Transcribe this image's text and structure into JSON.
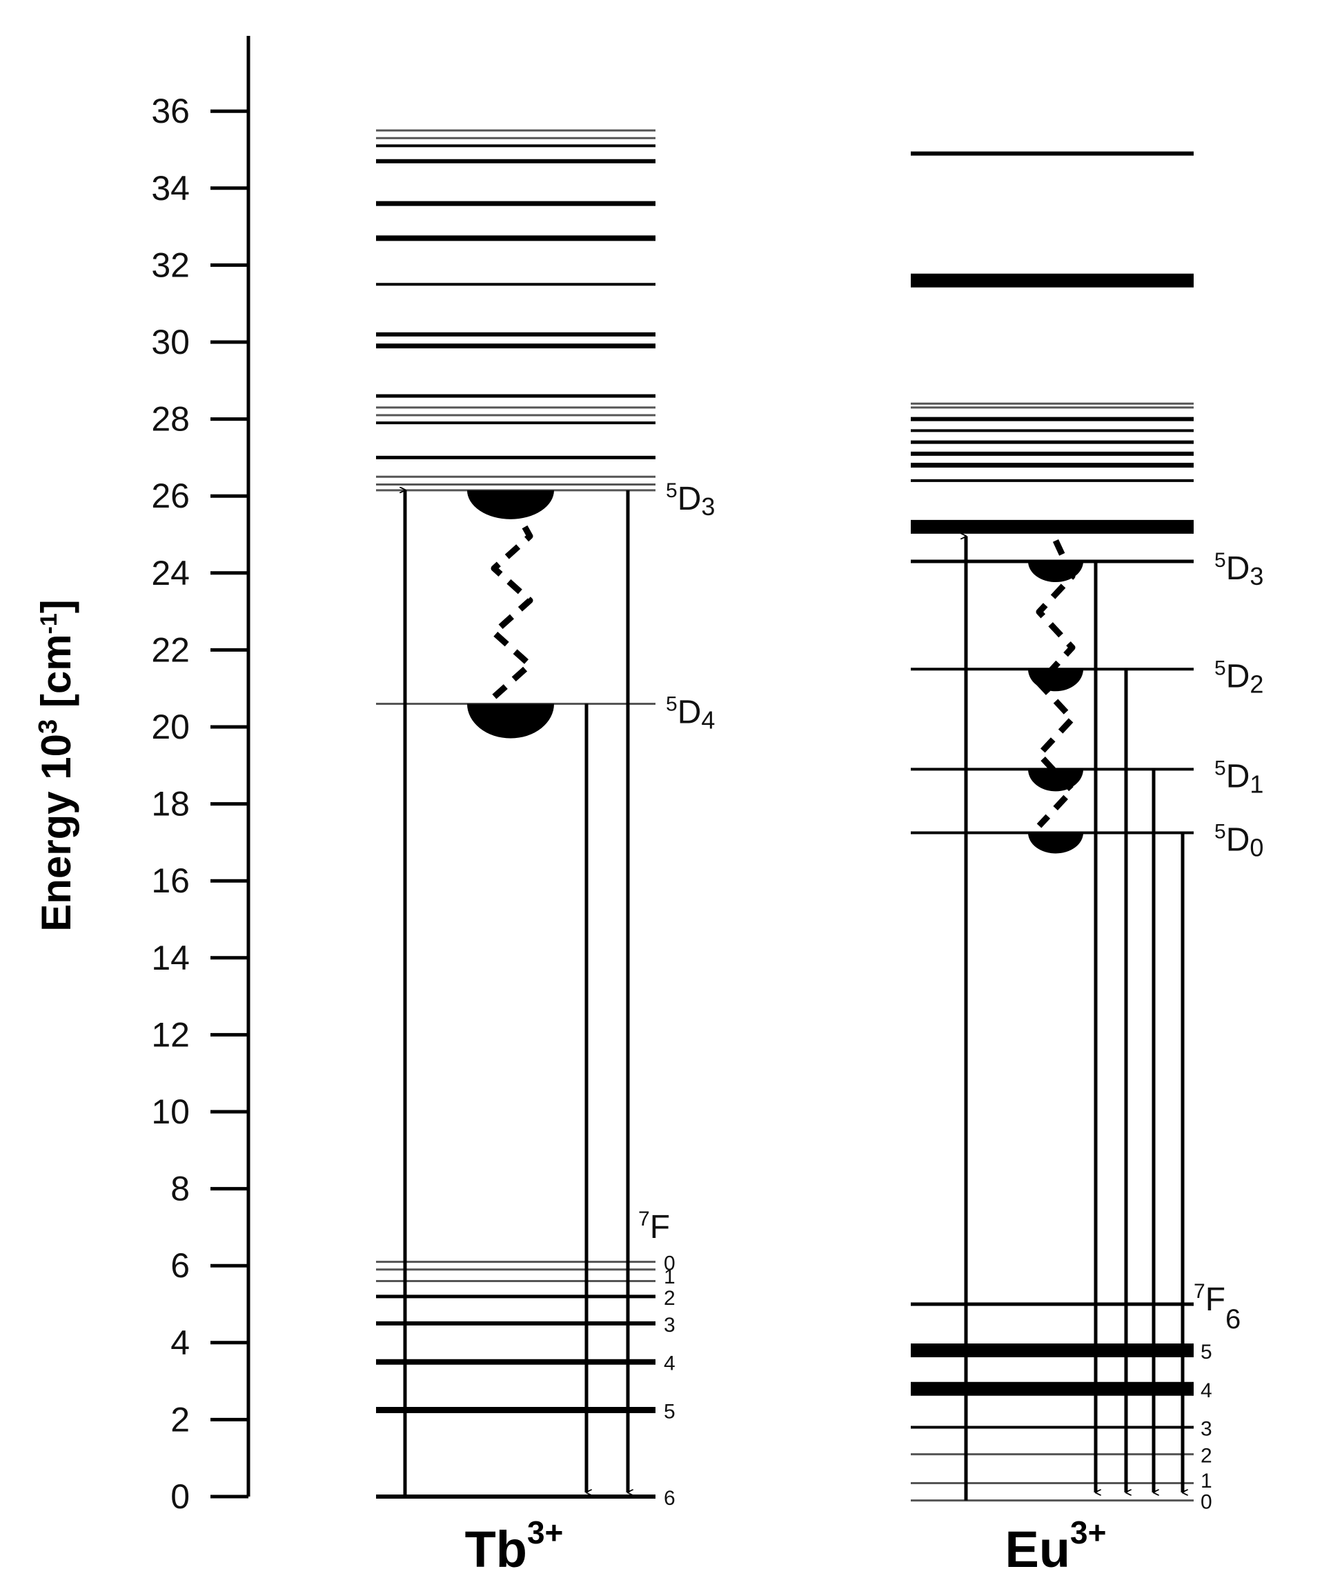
{
  "axis": {
    "title_main": "Energy 10",
    "title_sup": "3",
    "title_unit": "[cm",
    "title_unit_sup": "-1",
    "title_close": "]",
    "min": 0,
    "max": 36,
    "ticks": [
      0,
      2,
      4,
      6,
      8,
      10,
      12,
      14,
      16,
      18,
      20,
      22,
      24,
      26,
      28,
      30,
      32,
      34,
      36
    ]
  },
  "tb": {
    "ion": "Tb",
    "ion_charge": "3+",
    "levels": [
      {
        "e": 35.5,
        "w": 3
      },
      {
        "e": 35.3,
        "w": 3
      },
      {
        "e": 35.1,
        "w": 4
      },
      {
        "e": 34.7,
        "w": 6
      },
      {
        "e": 33.6,
        "w": 7
      },
      {
        "e": 32.7,
        "w": 8
      },
      {
        "e": 31.5,
        "w": 4
      },
      {
        "e": 30.2,
        "w": 6
      },
      {
        "e": 29.9,
        "w": 7
      },
      {
        "e": 28.6,
        "w": 5
      },
      {
        "e": 28.3,
        "w": 3
      },
      {
        "e": 28.1,
        "w": 3
      },
      {
        "e": 27.9,
        "w": 4
      },
      {
        "e": 27.0,
        "w": 5
      },
      {
        "e": 26.5,
        "w": 3
      },
      {
        "e": 26.3,
        "w": 3
      },
      {
        "e": 26.15,
        "w": 3
      },
      {
        "e": 20.6,
        "w": 3
      },
      {
        "e": 6.1,
        "w": 3
      },
      {
        "e": 5.9,
        "w": 3
      },
      {
        "e": 5.6,
        "w": 3
      },
      {
        "e": 5.2,
        "w": 5
      },
      {
        "e": 4.5,
        "w": 6
      },
      {
        "e": 3.5,
        "w": 8
      },
      {
        "e": 2.25,
        "w": 9
      },
      {
        "e": 0.0,
        "w": 6
      }
    ],
    "state_labels": [
      {
        "e": 26.15,
        "label": "D",
        "sup": "5",
        "sub": "3"
      },
      {
        "e": 20.6,
        "label": "D",
        "sup": "5",
        "sub": "4"
      }
    ],
    "ground_term": {
      "label": "F",
      "sup": "7"
    },
    "ground_numbers": [
      {
        "e": 6.1,
        "n": "0"
      },
      {
        "e": 5.75,
        "n": "1"
      },
      {
        "e": 5.2,
        "n": "2"
      },
      {
        "e": 4.5,
        "n": "3"
      },
      {
        "e": 3.5,
        "n": "4"
      },
      {
        "e": 2.25,
        "n": "5"
      },
      {
        "e": 0.0,
        "n": "6"
      }
    ],
    "excitation": {
      "from": 0.0,
      "to": 26.3
    },
    "emissions": [
      {
        "from": 20.6,
        "to": 0.0
      },
      {
        "from": 26.15,
        "to": 0.0
      }
    ],
    "relaxation": {
      "from": 26.15,
      "to": 20.6
    }
  },
  "eu": {
    "ion": "Eu",
    "ion_charge": "3+",
    "levels": [
      {
        "e": 34.9,
        "w": 6
      },
      {
        "e": 31.6,
        "w": 20
      },
      {
        "e": 28.4,
        "w": 3
      },
      {
        "e": 28.3,
        "w": 3
      },
      {
        "e": 28.0,
        "w": 6
      },
      {
        "e": 27.7,
        "w": 4
      },
      {
        "e": 27.4,
        "w": 5
      },
      {
        "e": 27.1,
        "w": 6
      },
      {
        "e": 26.8,
        "w": 7
      },
      {
        "e": 26.4,
        "w": 4
      },
      {
        "e": 25.2,
        "w": 20
      },
      {
        "e": 24.3,
        "w": 5
      },
      {
        "e": 21.5,
        "w": 4
      },
      {
        "e": 18.9,
        "w": 4
      },
      {
        "e": 17.25,
        "w": 4
      },
      {
        "e": 5.0,
        "w": 5
      },
      {
        "e": 3.8,
        "w": 20
      },
      {
        "e": 2.8,
        "w": 20
      },
      {
        "e": 1.8,
        "w": 4
      },
      {
        "e": 1.1,
        "w": 3
      },
      {
        "e": 0.35,
        "w": 3
      },
      {
        "e": -0.1,
        "w": 3
      }
    ],
    "state_labels": [
      {
        "e": 24.3,
        "label": "D",
        "sup": "5",
        "sub": "3"
      },
      {
        "e": 21.5,
        "label": "D",
        "sup": "5",
        "sub": "2"
      },
      {
        "e": 18.9,
        "label": "D",
        "sup": "5",
        "sub": "1"
      },
      {
        "e": 17.25,
        "label": "D",
        "sup": "5",
        "sub": "0"
      }
    ],
    "ground_term": {
      "label": "F",
      "sup": "7",
      "sub": "6"
    },
    "ground_numbers": [
      {
        "e": 3.8,
        "n": "5"
      },
      {
        "e": 2.8,
        "n": "4"
      },
      {
        "e": 1.8,
        "n": "3"
      },
      {
        "e": 1.1,
        "n": "2"
      },
      {
        "e": 0.45,
        "n": "1"
      },
      {
        "e": -0.1,
        "n": "0"
      }
    ],
    "excitation": {
      "from": -0.1,
      "to": 25.1
    },
    "emissions": [
      {
        "from": 24.3,
        "to": 0.0
      },
      {
        "from": 21.5,
        "to": 0.0
      },
      {
        "from": 18.9,
        "to": 0.0
      },
      {
        "from": 17.25,
        "to": 0.0
      }
    ],
    "relaxation": {
      "from": 25.2,
      "to": 17.25
    }
  }
}
